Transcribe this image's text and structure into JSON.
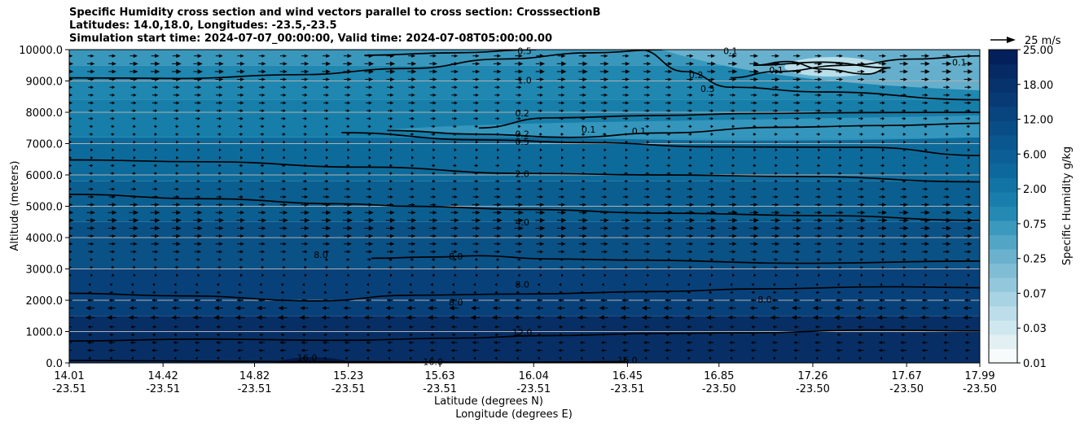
{
  "chart_data": {
    "type": "heatmap",
    "title_lines": [
      "Specific Humidity cross section and wind vectors parallel to cross section: CrosssectionB",
      "Latitudes: 14.0,18.0, Longitudes: -23.5,-23.5",
      "Simulation start time: 2024-07-07_00:00:00, Valid time: 2024-07-08T05:00:00.00"
    ],
    "ylabel": "Altitude (meters)",
    "xlabel_lat": "Latitude (degrees N)",
    "xlabel_lon": "Longitude (degrees E)",
    "ylim": [
      0,
      10000
    ],
    "yticks": [
      "0.0",
      "1000.0",
      "2000.0",
      "3000.0",
      "4000.0",
      "5000.0",
      "6000.0",
      "7000.0",
      "8000.0",
      "9000.0",
      "10000.0"
    ],
    "xticks": [
      {
        "lat": "14.01",
        "lon": "-23.51"
      },
      {
        "lat": "14.42",
        "lon": "-23.51"
      },
      {
        "lat": "14.82",
        "lon": "-23.51"
      },
      {
        "lat": "15.23",
        "lon": "-23.51"
      },
      {
        "lat": "15.63",
        "lon": "-23.51"
      },
      {
        "lat": "16.04",
        "lon": "-23.51"
      },
      {
        "lat": "16.45",
        "lon": "-23.51"
      },
      {
        "lat": "16.85",
        "lon": "-23.50"
      },
      {
        "lat": "17.26",
        "lon": "-23.50"
      },
      {
        "lat": "17.67",
        "lon": "-23.50"
      },
      {
        "lat": "17.99",
        "lon": "-23.50"
      }
    ],
    "colorbar": {
      "label": "Specific Humidity g/kg",
      "ticks": [
        "0.01",
        "0.03",
        "0.07",
        "0.25",
        "0.75",
        "2.00",
        "6.00",
        "12.00",
        "18.00",
        "25.00"
      ],
      "colors": [
        "#f7fbfc",
        "#e2f0f4",
        "#cfe7ef",
        "#bcdde9",
        "#a8d3e2",
        "#93c8dc",
        "#7fbdd4",
        "#69b1cd",
        "#52a5c5",
        "#3b99bd",
        "#2489b3",
        "#1a7eac",
        "#1274a5",
        "#0d699d",
        "#0b5f96",
        "#0a568e",
        "#094d86",
        "#08447e",
        "#083b75",
        "#07336d",
        "#062a63",
        "#04205a"
      ]
    },
    "wind_reference": "25 m/s",
    "humidity_bands": [
      {
        "z": 0,
        "color": "#072f66"
      },
      {
        "z": 1500,
        "color": "#08417a"
      },
      {
        "z": 3000,
        "color": "#0a5186"
      },
      {
        "z": 4500,
        "color": "#0b5f90"
      },
      {
        "z": 5800,
        "color": "#0d6b9b"
      },
      {
        "z": 7200,
        "color": "#167ea9"
      },
      {
        "z": 8400,
        "color": "#1f87b0"
      },
      {
        "z": 9500,
        "color": "#3a97bc"
      }
    ],
    "contours": [
      {
        "label": "16.0",
        "points": [
          [
            14.01,
            80
          ],
          [
            14.5,
            60
          ],
          [
            15.0,
            40
          ],
          [
            15.6,
            30
          ],
          [
            16.0,
            20
          ],
          [
            16.45,
            40
          ]
        ]
      },
      {
        "label": "12.0",
        "points": [
          [
            14.01,
            700
          ],
          [
            14.6,
            760
          ],
          [
            15.2,
            720
          ],
          [
            15.7,
            790
          ],
          [
            16.1,
            870
          ],
          [
            16.6,
            940
          ],
          [
            17.0,
            960
          ],
          [
            17.5,
            1050
          ],
          [
            17.99,
            1020
          ]
        ]
      },
      {
        "label": "8.0",
        "points": [
          [
            14.01,
            2220
          ],
          [
            14.5,
            2140
          ],
          [
            15.1,
            1980
          ],
          [
            15.5,
            2160
          ],
          [
            16.0,
            2200
          ],
          [
            16.6,
            2280
          ],
          [
            17.0,
            2360
          ],
          [
            17.6,
            2430
          ],
          [
            17.99,
            2400
          ]
        ]
      },
      {
        "label": "8.0",
        "points": [
          [
            15.33,
            3340
          ],
          [
            15.6,
            3380
          ],
          [
            15.8,
            3420
          ],
          [
            16.1,
            3320
          ],
          [
            16.5,
            3280
          ],
          [
            17.2,
            3180
          ],
          [
            17.99,
            3250
          ]
        ]
      },
      {
        "label": "4.0",
        "points": [
          [
            14.01,
            5380
          ],
          [
            14.6,
            5240
          ],
          [
            15.2,
            5080
          ],
          [
            15.5,
            5000
          ],
          [
            16.0,
            4900
          ],
          [
            16.6,
            4780
          ],
          [
            17.3,
            4700
          ],
          [
            17.99,
            4550
          ]
        ]
      },
      {
        "label": "2.0",
        "points": [
          [
            14.01,
            6480
          ],
          [
            14.6,
            6420
          ],
          [
            15.3,
            6250
          ],
          [
            16.0,
            6050
          ],
          [
            16.6,
            6000
          ],
          [
            17.2,
            5950
          ],
          [
            17.99,
            5780
          ]
        ]
      },
      {
        "label": "0.5",
        "points": [
          [
            15.2,
            7350
          ],
          [
            15.8,
            7120
          ],
          [
            16.3,
            7030
          ],
          [
            16.8,
            6900
          ],
          [
            17.5,
            6880
          ],
          [
            17.99,
            6620
          ]
        ]
      },
      {
        "label": "0.2",
        "points": [
          [
            15.4,
            7420
          ],
          [
            15.8,
            7300
          ],
          [
            16.2,
            7200
          ],
          [
            16.6,
            7340
          ],
          [
            17.1,
            7520
          ],
          [
            17.6,
            7580
          ],
          [
            17.99,
            7650
          ]
        ]
      },
      {
        "label": "0.2",
        "points": [
          [
            15.8,
            7500
          ],
          [
            16.1,
            7820
          ],
          [
            16.6,
            7900
          ],
          [
            17.0,
            7960
          ],
          [
            17.5,
            7990
          ],
          [
            17.99,
            8000
          ]
        ]
      },
      {
        "label": "0.5",
        "points": [
          [
            16.5,
            10000
          ],
          [
            16.7,
            9300
          ],
          [
            16.9,
            8800
          ],
          [
            17.3,
            8650
          ],
          [
            17.99,
            8400
          ]
        ]
      },
      {
        "label": "0.2",
        "points": [
          [
            16.9,
            9100
          ],
          [
            17.1,
            9300
          ],
          [
            17.4,
            9500
          ],
          [
            17.7,
            9700
          ],
          [
            17.99,
            9800
          ]
        ]
      },
      {
        "label": "0.1",
        "points": [
          [
            17.0,
            9500
          ],
          [
            17.15,
            9620
          ],
          [
            17.3,
            9380
          ],
          [
            17.5,
            9220
          ],
          [
            17.6,
            9420
          ],
          [
            17.3,
            9600
          ],
          [
            17.0,
            9500
          ]
        ]
      },
      {
        "label": "1.0",
        "points": [
          [
            14.01,
            9100
          ],
          [
            14.5,
            9080
          ],
          [
            15.0,
            9200
          ],
          [
            15.5,
            9400
          ],
          [
            15.9,
            9700
          ],
          [
            16.3,
            9900
          ],
          [
            16.6,
            10000
          ]
        ]
      },
      {
        "label": "0.5",
        "points": [
          [
            15.3,
            9820
          ],
          [
            15.7,
            9900
          ],
          [
            16.05,
            10000
          ]
        ]
      }
    ],
    "contour_labels": [
      {
        "text": "0.5",
        "lat": 16.0,
        "z": 9960
      },
      {
        "text": "1.0",
        "lat": 16.0,
        "z": 9020
      },
      {
        "text": "0.1",
        "lat": 16.9,
        "z": 9960
      },
      {
        "text": "0.2",
        "lat": 16.75,
        "z": 9200
      },
      {
        "text": "0.5",
        "lat": 16.8,
        "z": 8750
      },
      {
        "text": "0.1",
        "lat": 17.1,
        "z": 9350
      },
      {
        "text": "0.1",
        "lat": 17.9,
        "z": 9600
      },
      {
        "text": "0.2",
        "lat": 15.99,
        "z": 7970
      },
      {
        "text": "0.2",
        "lat": 15.99,
        "z": 7310
      },
      {
        "text": "0.5",
        "lat": 15.99,
        "z": 7060
      },
      {
        "text": "0.1",
        "lat": 16.28,
        "z": 7450
      },
      {
        "text": "0.1",
        "lat": 16.5,
        "z": 7400
      },
      {
        "text": "2.0",
        "lat": 15.99,
        "z": 6040
      },
      {
        "text": "4.0",
        "lat": 15.99,
        "z": 4500
      },
      {
        "text": "8.0",
        "lat": 15.11,
        "z": 3450
      },
      {
        "text": "8.0",
        "lat": 15.7,
        "z": 3400
      },
      {
        "text": "8.0",
        "lat": 15.99,
        "z": 2510
      },
      {
        "text": "8.0",
        "lat": 15.7,
        "z": 1930
      },
      {
        "text": "8.0",
        "lat": 17.05,
        "z": 2030
      },
      {
        "text": "12.0",
        "lat": 15.99,
        "z": 980
      },
      {
        "text": "16.0",
        "lat": 15.05,
        "z": 170
      },
      {
        "text": "16.0",
        "lat": 15.6,
        "z": 40
      },
      {
        "text": "16.0",
        "lat": 16.45,
        "z": 90
      }
    ],
    "wind_rows": [
      {
        "z": 150,
        "u": -2
      },
      {
        "z": 400,
        "u": -5
      },
      {
        "z": 650,
        "u": -5
      },
      {
        "z": 900,
        "u": -3
      },
      {
        "z": 1150,
        "u": -4
      },
      {
        "z": 1450,
        "u": -8
      },
      {
        "z": 1750,
        "u": -7
      },
      {
        "z": 2000,
        "u": -5
      },
      {
        "z": 2250,
        "u": -3
      },
      {
        "z": 2500,
        "u": -2
      },
      {
        "z": 2800,
        "u": 2
      },
      {
        "z": 3050,
        "u": 3
      },
      {
        "z": 3300,
        "u": 3
      },
      {
        "z": 3550,
        "u": 5
      },
      {
        "z": 3800,
        "u": 6
      },
      {
        "z": 4050,
        "u": 6
      },
      {
        "z": 4300,
        "u": 7
      },
      {
        "z": 4550,
        "u": 8
      },
      {
        "z": 4800,
        "u": 7
      },
      {
        "z": 5050,
        "u": 6
      },
      {
        "z": 5300,
        "u": 5
      },
      {
        "z": 5550,
        "u": 4
      },
      {
        "z": 5800,
        "u": 3
      },
      {
        "z": 6050,
        "u": 3
      },
      {
        "z": 6300,
        "u": 3
      },
      {
        "z": 6550,
        "u": 2
      },
      {
        "z": 6800,
        "u": 2
      },
      {
        "z": 7050,
        "u": 2
      },
      {
        "z": 7300,
        "u": 3
      },
      {
        "z": 7550,
        "u": 3
      },
      {
        "z": 7800,
        "u": 4
      },
      {
        "z": 8050,
        "u": 4
      },
      {
        "z": 8300,
        "u": 5
      },
      {
        "z": 8550,
        "u": 5
      },
      {
        "z": 8800,
        "u": 5
      },
      {
        "z": 9050,
        "u": 6
      },
      {
        "z": 9300,
        "u": 7
      },
      {
        "z": 9550,
        "u": 7
      },
      {
        "z": 9800,
        "u": 6
      }
    ],
    "grid": "horizontal"
  }
}
